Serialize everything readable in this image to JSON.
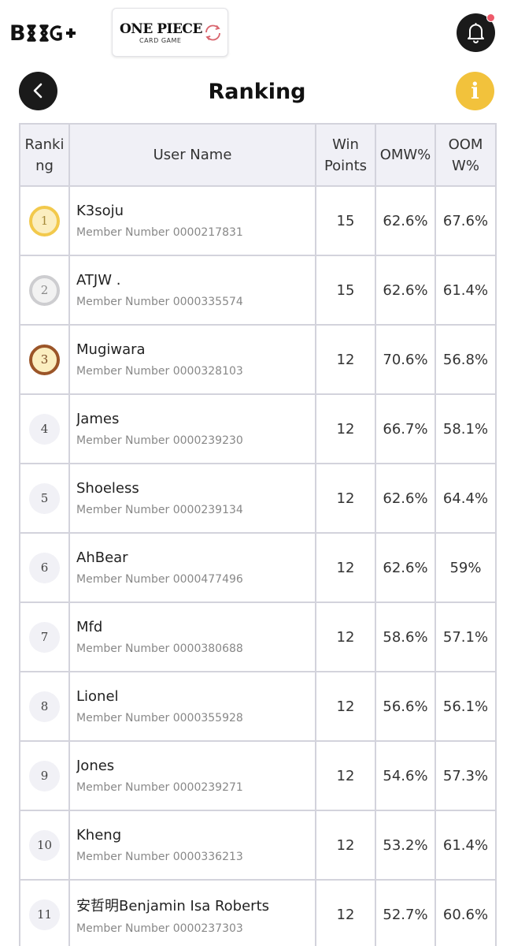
{
  "brand": {
    "bandai_logo": "B",
    "op_title": "ONE PIECE",
    "op_subtitle": "CARD GAME"
  },
  "header": {
    "title": "Ranking",
    "info_glyph": "i"
  },
  "icons": {
    "back": "chevron-left-icon",
    "bell": "bell-icon",
    "info": "info-icon",
    "recycle": "recycle-icon"
  },
  "colors": {
    "accent_yellow": "#f2c23c",
    "notification_dot": "#ee5a6a",
    "gold": "#f2c94c",
    "silver": "#cdcdd0",
    "bronze": "#9b5528"
  },
  "table": {
    "headers": {
      "ranking": "Ranking",
      "user_name": "User Name",
      "win_points": "Win Points",
      "omw": "OMW%",
      "oomw": "OOMW%"
    },
    "member_label": "Member Number",
    "rows": [
      {
        "rank": "1",
        "name": "K3soju",
        "member": "0000217831",
        "win_points": "15",
        "omw": "62.6%",
        "oomw": "67.6%",
        "medal": "gold"
      },
      {
        "rank": "2",
        "name": "ATJW .",
        "member": "0000335574",
        "win_points": "15",
        "omw": "62.6%",
        "oomw": "61.4%",
        "medal": "silver"
      },
      {
        "rank": "3",
        "name": "Mugiwara",
        "member": "0000328103",
        "win_points": "12",
        "omw": "70.6%",
        "oomw": "56.8%",
        "medal": "bronze"
      },
      {
        "rank": "4",
        "name": "James",
        "member": "0000239230",
        "win_points": "12",
        "omw": "66.7%",
        "oomw": "58.1%",
        "medal": ""
      },
      {
        "rank": "5",
        "name": "Shoeless",
        "member": "0000239134",
        "win_points": "12",
        "omw": "62.6%",
        "oomw": "64.4%",
        "medal": ""
      },
      {
        "rank": "6",
        "name": "AhBear",
        "member": "0000477496",
        "win_points": "12",
        "omw": "62.6%",
        "oomw": "59%",
        "medal": ""
      },
      {
        "rank": "7",
        "name": "Mfd",
        "member": "0000380688",
        "win_points": "12",
        "omw": "58.6%",
        "oomw": "57.1%",
        "medal": ""
      },
      {
        "rank": "8",
        "name": "Lionel",
        "member": "0000355928",
        "win_points": "12",
        "omw": "56.6%",
        "oomw": "56.1%",
        "medal": ""
      },
      {
        "rank": "9",
        "name": "Jones",
        "member": "0000239271",
        "win_points": "12",
        "omw": "54.6%",
        "oomw": "57.3%",
        "medal": ""
      },
      {
        "rank": "10",
        "name": "Kheng",
        "member": "0000336213",
        "win_points": "12",
        "omw": "53.2%",
        "oomw": "61.4%",
        "medal": ""
      },
      {
        "rank": "11",
        "name": "安哲明Benjamin Isa Roberts",
        "member": "0000237303",
        "win_points": "12",
        "omw": "52.7%",
        "oomw": "60.6%",
        "medal": ""
      }
    ]
  }
}
